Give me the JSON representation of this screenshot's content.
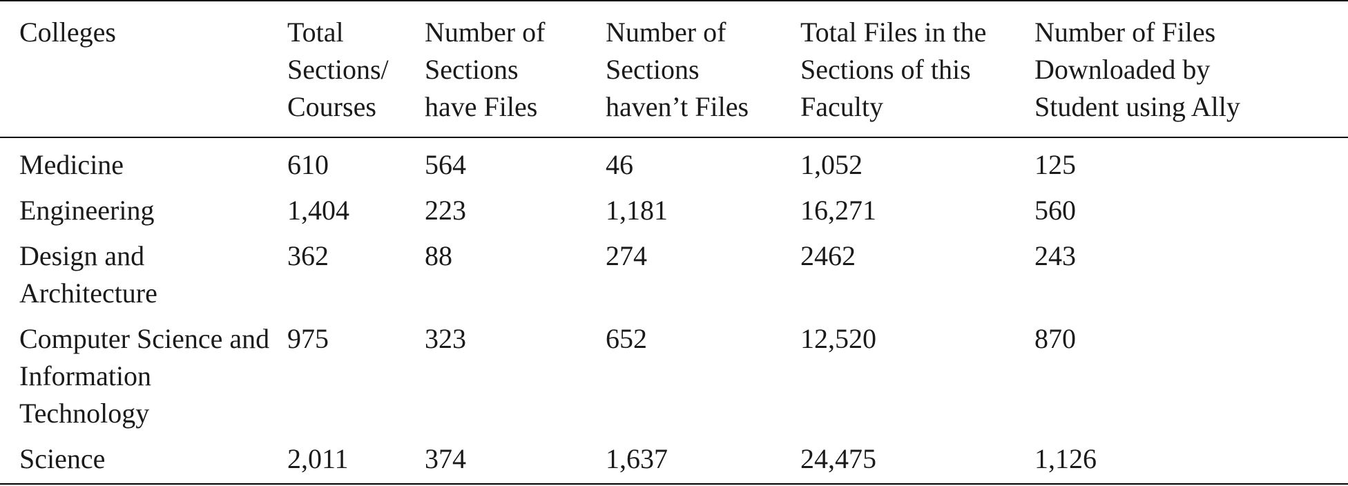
{
  "table": {
    "headers": [
      "Colleges",
      "Total\nSections/\nCourses",
      "Number of\nSections\nhave Files",
      "Number of\nSections\nhaven’t Files",
      "Total Files in the\nSections of this\nFaculty",
      "Number of Files\nDownloaded by\nStudent using Ally"
    ],
    "rows": [
      [
        "Medicine",
        "610",
        "564",
        "46",
        "1,052",
        "125"
      ],
      [
        "Engineering",
        "1,404",
        "223",
        "1,181",
        "16,271",
        "560"
      ],
      [
        "Design and Architecture",
        "362",
        "88",
        "274",
        "2462",
        "243"
      ],
      [
        "Computer Science and Information Technology",
        "975",
        "323",
        "652",
        "12,520",
        "870"
      ],
      [
        "Science",
        "2,011",
        "374",
        "1,637",
        "24,475",
        "1,126"
      ]
    ]
  }
}
